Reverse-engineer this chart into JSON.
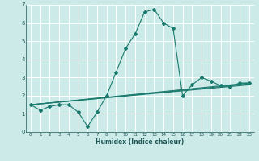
{
  "title": "",
  "xlabel": "Humidex (Indice chaleur)",
  "bg_color": "#cceae7",
  "grid_color": "#ffffff",
  "line_color": "#1a7a6e",
  "xlim": [
    -0.5,
    23.5
  ],
  "ylim": [
    0,
    7
  ],
  "xticks": [
    0,
    1,
    2,
    3,
    4,
    5,
    6,
    7,
    8,
    9,
    10,
    11,
    12,
    13,
    14,
    15,
    16,
    17,
    18,
    19,
    20,
    21,
    22,
    23
  ],
  "yticks": [
    0,
    1,
    2,
    3,
    4,
    5,
    6,
    7
  ],
  "series": [
    [
      0,
      1.5
    ],
    [
      1,
      1.2
    ],
    [
      2,
      1.4
    ],
    [
      3,
      1.5
    ],
    [
      4,
      1.5
    ],
    [
      5,
      1.1
    ],
    [
      6,
      0.3
    ],
    [
      7,
      1.1
    ],
    [
      8,
      2.0
    ],
    [
      9,
      3.3
    ],
    [
      10,
      4.6
    ],
    [
      11,
      5.4
    ],
    [
      12,
      6.6
    ],
    [
      13,
      6.75
    ],
    [
      14,
      6.0
    ],
    [
      15,
      5.7
    ],
    [
      16,
      2.0
    ],
    [
      17,
      2.6
    ],
    [
      18,
      3.0
    ],
    [
      19,
      2.8
    ],
    [
      20,
      2.55
    ],
    [
      21,
      2.5
    ],
    [
      22,
      2.7
    ],
    [
      23,
      2.7
    ]
  ],
  "line2": [
    [
      0,
      1.5
    ],
    [
      23,
      2.7
    ]
  ],
  "line3": [
    [
      0,
      1.5
    ],
    [
      23,
      2.65
    ]
  ],
  "line4": [
    [
      0,
      1.5
    ],
    [
      23,
      2.6
    ]
  ]
}
